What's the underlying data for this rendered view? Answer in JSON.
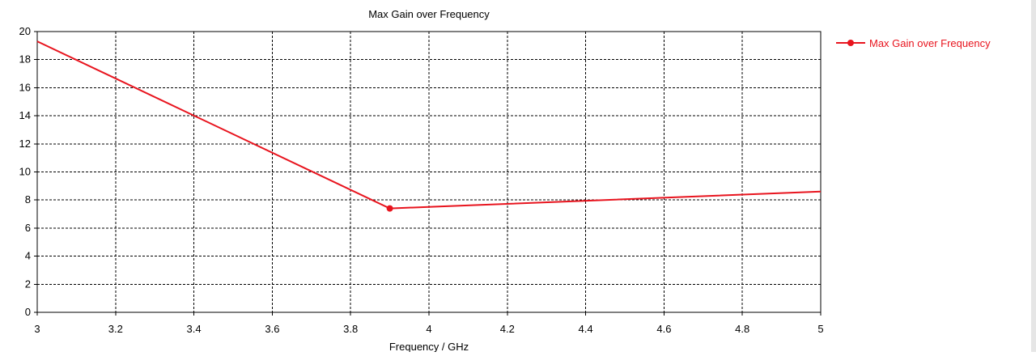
{
  "chart_data": {
    "type": "line",
    "title": "Max Gain over Frequency",
    "xlabel": "Frequency / GHz",
    "ylabel": "",
    "xlim": [
      3,
      5
    ],
    "ylim": [
      0,
      20
    ],
    "xticks": [
      "3",
      "3.2",
      "3.4",
      "3.6",
      "3.8",
      "4",
      "4.2",
      "4.4",
      "4.6",
      "4.8",
      "5"
    ],
    "yticks": [
      "0",
      "2",
      "4",
      "6",
      "8",
      "10",
      "12",
      "14",
      "16",
      "18",
      "20"
    ],
    "grid": true,
    "legend_position": "top-right",
    "series": [
      {
        "name": "Max Gain over Frequency",
        "color": "#e8141e",
        "x": [
          3.0,
          3.9,
          5.0
        ],
        "y": [
          19.3,
          7.4,
          8.6
        ],
        "markers_at": [
          3.9
        ]
      }
    ]
  }
}
